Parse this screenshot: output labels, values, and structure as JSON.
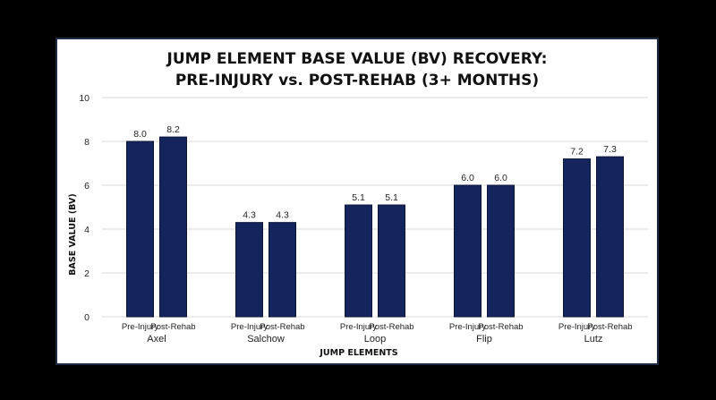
{
  "colors": {
    "bar": "#14245c",
    "bar_stroke": "#0b1538",
    "grid": "#d9d9d9"
  },
  "chart_data": {
    "type": "bar",
    "title_lines": [
      "JUMP ELEMENT BASE VALUE (BV) RECOVERY:",
      "PRE-INJURY vs. POST-REHAB (3+ MONTHS)"
    ],
    "xlabel": "JUMP ELEMENTS",
    "ylabel": "BASE VALUE (BV)",
    "ylim": [
      0,
      10
    ],
    "yticks": [
      0,
      2,
      4,
      6,
      8,
      10
    ],
    "categories": [
      "Axel",
      "Salchow",
      "Loop",
      "Flip",
      "Lutz"
    ],
    "series": [
      {
        "name": "Pre-Injury",
        "values": [
          8.0,
          4.3,
          5.1,
          6.0,
          7.2
        ]
      },
      {
        "name": "Post-Rehab",
        "values": [
          8.2,
          4.3,
          5.1,
          6.0,
          7.3
        ]
      }
    ],
    "value_labels": [
      [
        "8.0",
        "4.3",
        "5.1",
        "6.0",
        "7.2"
      ],
      [
        "8.2",
        "4.3",
        "5.1",
        "6.0",
        "7.3"
      ]
    ],
    "grid": true,
    "legend": "none"
  }
}
